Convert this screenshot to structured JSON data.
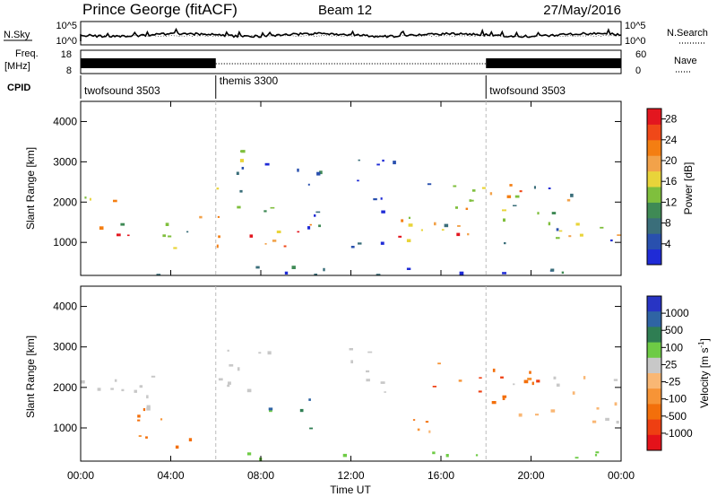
{
  "header": {
    "station": "Prince George (fitACF)",
    "beam": "Beam 12",
    "date": "27/May/2016"
  },
  "noise_panel": {
    "left_label": "N.Sky",
    "left_ticks": [
      "10^5",
      "10^0"
    ],
    "right_label": "N.Search",
    "right_ticks": [
      "10^5",
      "10^0"
    ]
  },
  "freq_panel": {
    "left_label_top": "Freq.",
    "left_label_bottom": "[MHz]",
    "left_ticks": [
      "18",
      "8"
    ],
    "right_label": "Nave",
    "right_ticks": [
      "60",
      "0"
    ]
  },
  "cpid_panel": {
    "label": "CPID",
    "segments": [
      {
        "name": "twofsound 3503",
        "start_hour": 0
      },
      {
        "name": "themis 3300",
        "start_hour": 6
      },
      {
        "name": "twofsound 3503",
        "start_hour": 18
      }
    ]
  },
  "colors": {
    "power_scale": [
      "#1f2bd6",
      "#2950ae",
      "#3a6e7a",
      "#3f8a55",
      "#7fbf3d",
      "#e9d43a",
      "#f2a24a",
      "#f47e12",
      "#f04818",
      "#e3161f"
    ],
    "velocity_scale": [
      "#2834c4",
      "#2f64a4",
      "#2f7e53",
      "#6ecb45",
      "#c8c8c8",
      "#f9b774",
      "#f79436",
      "#f36f0b",
      "#ee3f12",
      "#e4121a"
    ]
  },
  "chart_data": [
    {
      "type": "heatmap",
      "title": "Power",
      "xlabel": "",
      "ylabel": "Slant Range [km]",
      "xlim": [
        0,
        24
      ],
      "ylim": [
        180,
        4500
      ],
      "yticks": [
        "1000",
        "2000",
        "3000",
        "4000"
      ],
      "colorbar": {
        "label": "Power [dB]",
        "ticks": [
          "4",
          "8",
          "12",
          "16",
          "20",
          "24",
          "28"
        ],
        "range": [
          0,
          30
        ]
      }
    },
    {
      "type": "heatmap",
      "title": "Velocity",
      "xlabel": "Time UT",
      "ylabel": "Slant Range [km]",
      "xlim": [
        0,
        24
      ],
      "ylim": [
        180,
        4500
      ],
      "yticks": [
        "1000",
        "2000",
        "3000",
        "4000"
      ],
      "xticks": [
        "00:00",
        "04:00",
        "08:00",
        "12:00",
        "16:00",
        "20:00",
        "00:00"
      ],
      "colorbar": {
        "label": "Velocity [m s",
        "label_sup": "-1",
        "label_end": "]",
        "ticks": [
          "1000",
          "500",
          "100",
          "25",
          "-25",
          "-100",
          "-500",
          "-1000"
        ]
      }
    }
  ]
}
